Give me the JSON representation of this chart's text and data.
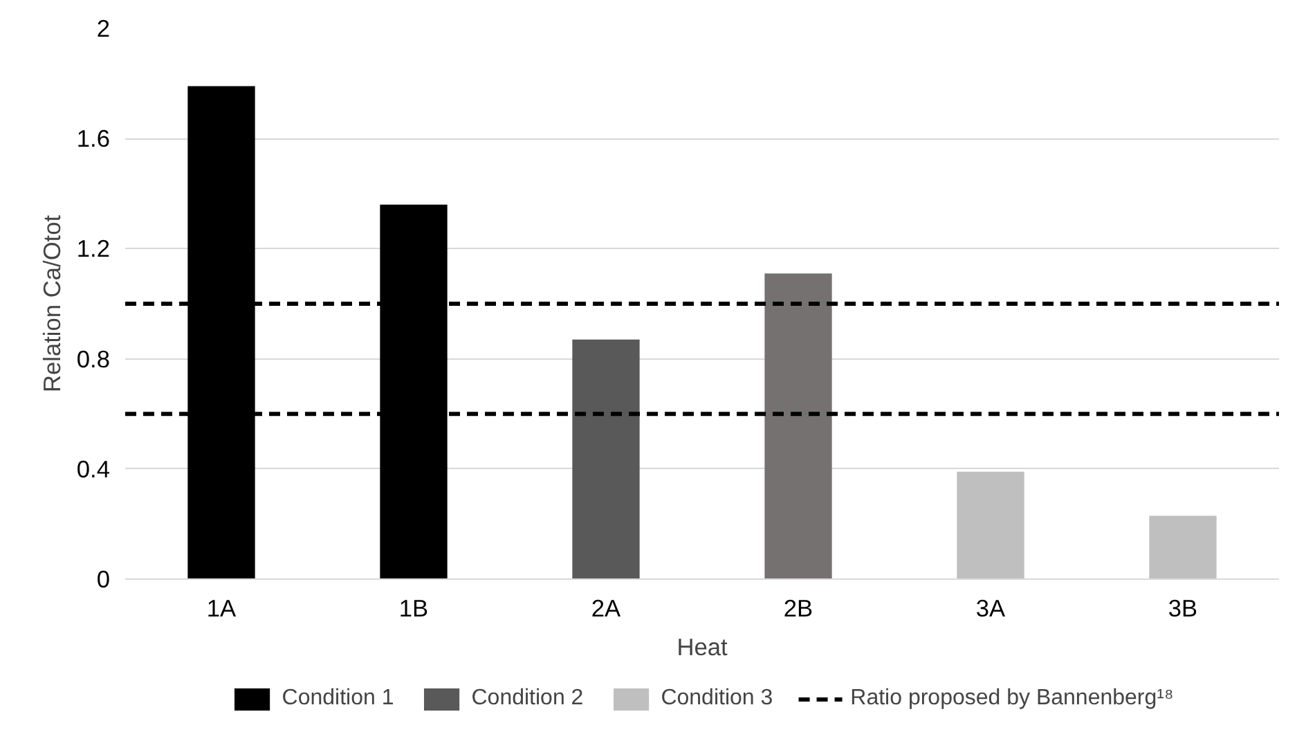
{
  "chart_data": {
    "type": "bar",
    "xlabel": "Heat",
    "ylabel": "Relation Ca/Otot",
    "categories": [
      "1A",
      "1B",
      "2A",
      "2B",
      "3A",
      "3B"
    ],
    "series": [
      {
        "name": "Condition 1",
        "color": "#000000",
        "values": [
          1.79,
          1.36,
          null,
          null,
          null,
          null
        ]
      },
      {
        "name": "Condition 2",
        "color": "#595959",
        "colors": [
          "#595959",
          "#595959",
          "#595959",
          "#767171",
          "#595959",
          "#595959"
        ],
        "values": [
          null,
          null,
          0.87,
          1.11,
          null,
          null
        ]
      },
      {
        "name": "Condition 3",
        "color": "#bfbfbf",
        "values": [
          null,
          null,
          null,
          null,
          0.39,
          0.23
        ]
      }
    ],
    "ylim": [
      0,
      2
    ],
    "yticks": [
      0,
      {
        "value": 0.4,
        "label": "0.4"
      },
      {
        "value": 0.8,
        "label": "0.8"
      },
      {
        "value": 1.2,
        "label": "1.2"
      },
      {
        "value": 1.6,
        "label": "1.6"
      },
      2
    ],
    "ref_lines": [
      {
        "axis": "y",
        "value": 1.0,
        "label": "Ratio proposed by Bannenberg¹⁸",
        "color": "#000000",
        "line_style": "dashed"
      },
      {
        "axis": "y",
        "value": 0.6,
        "color": "#000000",
        "line_style": "dashed"
      }
    ],
    "grid": "y",
    "legend": "bottom"
  }
}
